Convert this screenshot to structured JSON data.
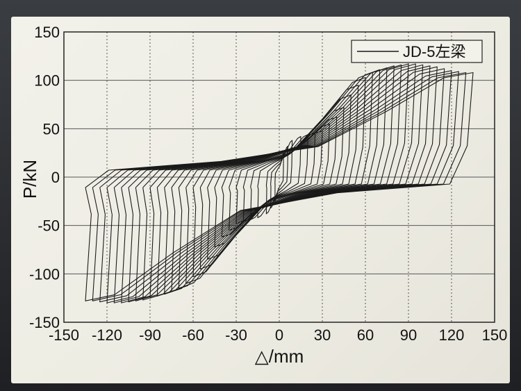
{
  "chart_data": {
    "type": "line",
    "xlabel": "△/mm",
    "ylabel": "P/kN",
    "xlim": [
      -150,
      150
    ],
    "ylim": [
      -150,
      150
    ],
    "xticks": [
      -150,
      -120,
      -90,
      -60,
      -30,
      0,
      30,
      60,
      90,
      120,
      150
    ],
    "yticks": [
      -150,
      -100,
      -50,
      0,
      50,
      100,
      150
    ],
    "grid": true,
    "legend_position": "top-right",
    "series": [
      {
        "name": "JD-5左梁",
        "color": "#1a1a1a",
        "loops": [
          {
            "amplitude": 3,
            "peak_pos": 25,
            "peak_neg": -25
          },
          {
            "amplitude": 6,
            "peak_pos": 32,
            "peak_neg": -32
          },
          {
            "amplitude": 9,
            "peak_pos": 38,
            "peak_neg": -38
          },
          {
            "amplitude": 15,
            "peak_pos": 42,
            "peak_neg": -42
          },
          {
            "amplitude": 20,
            "peak_pos": 44,
            "peak_neg": -44
          },
          {
            "amplitude": 25,
            "peak_pos": 46,
            "peak_neg": -46
          },
          {
            "amplitude": 30,
            "peak_pos": 48,
            "peak_neg": -48
          },
          {
            "amplitude": 35,
            "peak_pos": 55,
            "peak_neg": -55
          },
          {
            "amplitude": 40,
            "peak_pos": 62,
            "peak_neg": -62
          },
          {
            "amplitude": 45,
            "peak_pos": 72,
            "peak_neg": -72
          },
          {
            "amplitude": 50,
            "peak_pos": 85,
            "peak_neg": -85
          },
          {
            "amplitude": 55,
            "peak_pos": 95,
            "peak_neg": -95
          },
          {
            "amplitude": 60,
            "peak_pos": 103,
            "peak_neg": -103
          },
          {
            "amplitude": 65,
            "peak_pos": 108,
            "peak_neg": -110
          },
          {
            "amplitude": 70,
            "peak_pos": 111,
            "peak_neg": -115
          },
          {
            "amplitude": 75,
            "peak_pos": 113,
            "peak_neg": -118
          },
          {
            "amplitude": 80,
            "peak_pos": 115,
            "peak_neg": -121
          },
          {
            "amplitude": 85,
            "peak_pos": 116,
            "peak_neg": -123
          },
          {
            "amplitude": 90,
            "peak_pos": 117,
            "peak_neg": -125
          },
          {
            "amplitude": 95,
            "peak_pos": 117,
            "peak_neg": -127
          },
          {
            "amplitude": 100,
            "peak_pos": 116,
            "peak_neg": -128
          },
          {
            "amplitude": 105,
            "peak_pos": 115,
            "peak_neg": -129
          },
          {
            "amplitude": 110,
            "peak_pos": 114,
            "peak_neg": -130
          },
          {
            "amplitude": 115,
            "peak_pos": 112,
            "peak_neg": -130
          },
          {
            "amplitude": 120,
            "peak_pos": 110,
            "peak_neg": -130
          },
          {
            "amplitude": 125,
            "peak_pos": 109,
            "peak_neg": -129
          },
          {
            "amplitude": 130,
            "peak_pos": 108,
            "peak_neg": -128
          },
          {
            "amplitude": 135,
            "peak_pos": 108,
            "peak_neg": -128
          }
        ]
      }
    ]
  }
}
